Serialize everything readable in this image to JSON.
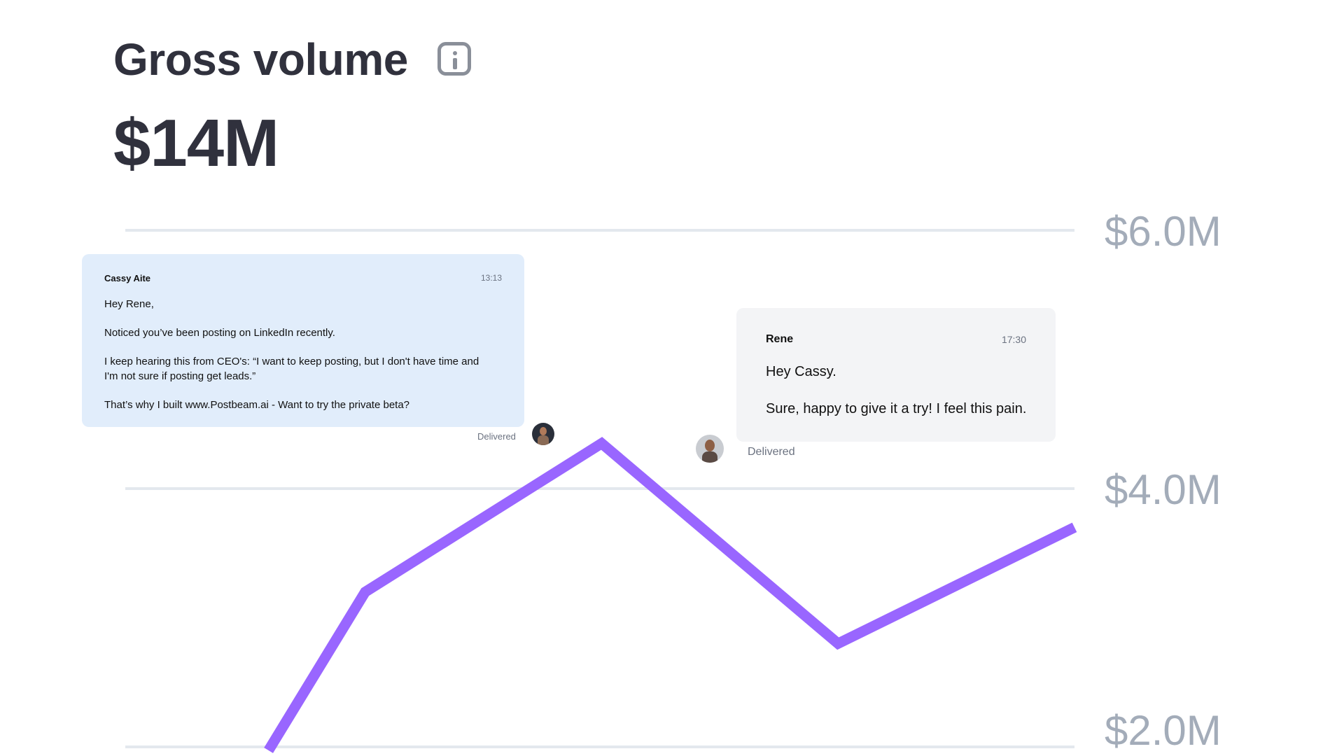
{
  "header": {
    "title": "Gross volume",
    "info_icon": "info-icon",
    "total": "$14M"
  },
  "chart_data": {
    "type": "line",
    "title": "Gross volume",
    "x": [
      1,
      2,
      3,
      4,
      5
    ],
    "values": [
      0.2,
      3.2,
      4.35,
      2.8,
      3.7
    ],
    "y_ticks": [
      2.0,
      4.0,
      6.0
    ],
    "tick_labels": [
      "$2.0M",
      "$4.0M",
      "$6.0M"
    ],
    "ylim": [
      2.0,
      6.0
    ],
    "grid": true,
    "line_color": "#9966ff",
    "grid_color": "#e3e8ee"
  },
  "messages": [
    {
      "sender": "Cassy Aite",
      "time": "13:13",
      "lines": [
        "Hey Rene,",
        "Noticed you’ve been posting on LinkedIn recently.",
        "I keep hearing this from CEO's: “I want to keep posting, but I don't have time and",
        "I'm not sure if posting get leads.”",
        "That’s why I built www.Postbeam.ai - Want to try the private beta?"
      ],
      "status": "Delivered",
      "bubble_color": "#e1edfb"
    },
    {
      "sender": "Rene",
      "time": "17:30",
      "lines": [
        "Hey Cassy.",
        "Sure, happy to give it a try! I feel this pain."
      ],
      "status": "Delivered",
      "bubble_color": "#f3f4f6"
    }
  ]
}
